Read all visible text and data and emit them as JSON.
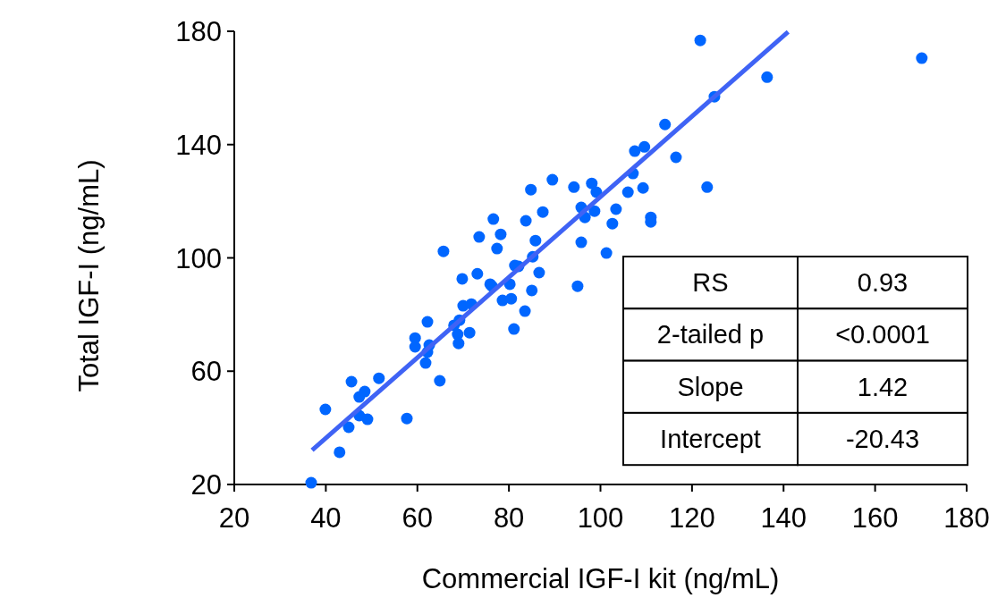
{
  "chart_data": {
    "type": "scatter",
    "xlabel": "Commercial IGF-I kit  (ng/mL)",
    "ylabel": "Total IGF-I (ng/mL)",
    "xlim": [
      20,
      180
    ],
    "ylim": [
      20,
      180
    ],
    "xticks": [
      20,
      40,
      60,
      80,
      100,
      120,
      140,
      160,
      180
    ],
    "yticks": [
      20,
      60,
      100,
      140,
      180
    ],
    "grid": false,
    "marker": "circle",
    "annotations": [
      "RS",
      "0.93",
      "2-tailed p",
      "<0.0001",
      "Slope",
      "1.42",
      "Intercept",
      "-20.43"
    ],
    "series": [
      {
        "color": "#0066ff",
        "x": [
          36.8,
          39.9,
          43.0,
          45.0,
          45.6,
          47.3,
          48.5,
          47.3,
          49.1,
          51.6,
          57.7,
          59.5,
          59.5,
          61.8,
          62.2,
          62.2,
          62.6,
          64.9,
          65.7,
          68.0,
          68.8,
          69.0,
          69.2,
          69.8,
          70.0,
          71.4,
          71.8,
          73.1,
          73.5,
          75.9,
          76.3,
          76.6,
          77.4,
          78.2,
          78.6,
          80.2,
          80.5,
          81.1,
          81.3,
          82.1,
          83.5,
          83.7,
          84.8,
          85.0,
          85.2,
          85.8,
          86.6,
          87.4,
          89.5,
          94.2,
          95.0,
          95.8,
          95.8,
          96.6,
          98.1,
          98.7,
          99.1,
          101.3,
          102.6,
          103.4,
          106.0,
          107.1,
          107.5,
          109.3,
          109.6,
          111.0,
          111.0,
          114.1,
          116.5,
          121.8,
          123.3,
          124.9,
          136.4,
          170.2
        ],
        "values": [
          20.6,
          46.5,
          31.4,
          40.2,
          56.3,
          50.9,
          52.8,
          44.3,
          43.0,
          57.5,
          43.3,
          71.7,
          68.6,
          62.9,
          77.4,
          66.7,
          69.2,
          56.6,
          102.3,
          76.2,
          73.0,
          69.8,
          78.0,
          92.6,
          83.1,
          73.6,
          83.7,
          94.4,
          107.4,
          90.7,
          90.0,
          113.7,
          103.3,
          108.3,
          85.0,
          90.7,
          85.6,
          74.9,
          97.3,
          97.0,
          81.2,
          113.1,
          124.1,
          88.5,
          100.4,
          106.1,
          94.8,
          116.2,
          127.6,
          125.0,
          90.0,
          117.8,
          105.5,
          114.3,
          126.3,
          116.5,
          123.2,
          101.7,
          112.1,
          117.2,
          123.2,
          129.8,
          137.7,
          124.7,
          139.2,
          114.3,
          112.7,
          147.1,
          135.5,
          176.8,
          125.0,
          156.9,
          163.8,
          170.5
        ]
      },
      {
        "type": "line",
        "color": "#3f63f5",
        "marker": "none",
        "x": [
          37,
          141
        ],
        "values": [
          32.1,
          179.8
        ]
      }
    ]
  }
}
